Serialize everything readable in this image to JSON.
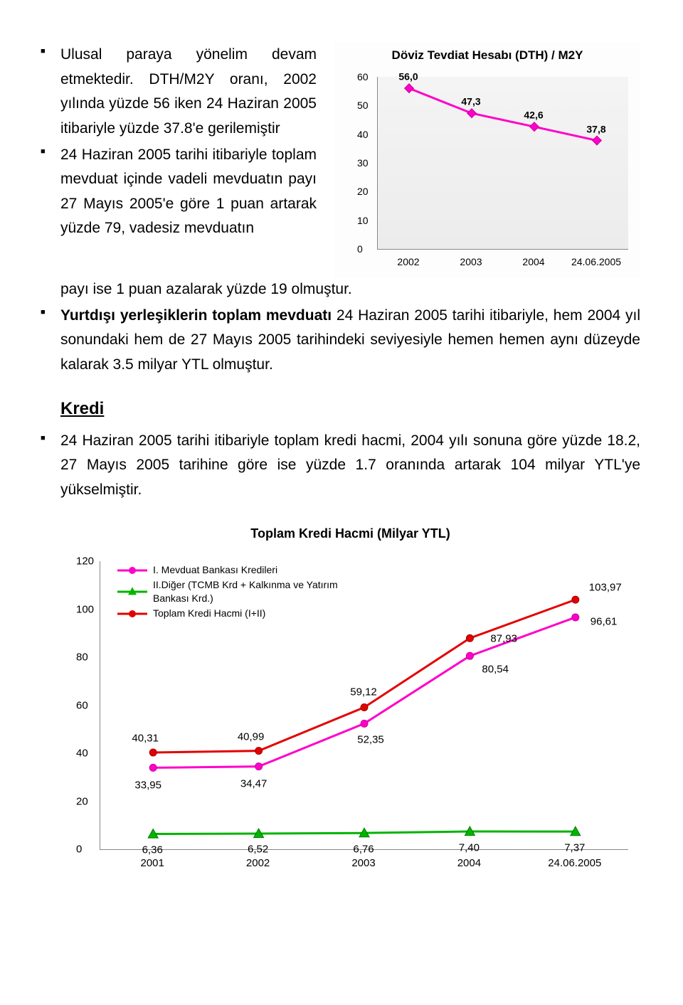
{
  "bullets_top": {
    "item1": "Ulusal paraya yönelim devam etmektedir. DTH/M2Y oranı, 2002 yılında yüzde 56 iken 24 Haziran 2005 itibariyle yüzde 37.8'e gerilemiştir",
    "item2": "24 Haziran 2005 tarihi itibariyle toplam mevduat içinde vadeli mevduatın payı 27 Mayıs 2005'e göre 1 puan artarak yüzde 79, vadesiz mevduatın"
  },
  "cont_text": {
    "line1": "payı ise 1 puan azalarak yüzde 19 olmuştur.",
    "lead": "Yurtdışı yerleşiklerin toplam mevduatı",
    "rest": " 24 Haziran 2005 tarihi itibariyle, hem 2004 yıl sonundaki hem de 27 Mayıs 2005 tarihindeki seviyesiyle hemen hemen aynı düzeyde kalarak 3.5 milyar YTL olmuştur."
  },
  "kredi_heading": "Kredi",
  "bullets_kredi": {
    "item1": "24 Haziran 2005 tarihi itibariyle toplam kredi hacmi, 2004 yılı sonuna göre yüzde 18.2, 27 Mayıs 2005 tarihine göre ise yüzde 1.7 oranında artarak 104 milyar YTL'ye yükselmiştir."
  },
  "chart1": {
    "title": "Döviz Tevdiat Hesabı (DTH) / M2Y",
    "type": "line",
    "ylim": [
      0,
      60
    ],
    "ytick_step": 10,
    "yticks": [
      "0",
      "10",
      "20",
      "30",
      "40",
      "50",
      "60"
    ],
    "categories": [
      "2002",
      "2003",
      "2004",
      "24.06.2005"
    ],
    "values": [
      56.0,
      47.3,
      42.6,
      37.8
    ],
    "value_labels": [
      "56,0",
      "47,3",
      "42,6",
      "37,8"
    ],
    "line_color": "#ff00c8",
    "line_width": 3,
    "marker": "diamond",
    "marker_size": 9,
    "marker_fill": "#ff00c8",
    "marker_stroke": "#c400a0",
    "background_top": "#f4f4f4",
    "background_bottom": "#ececec",
    "axis_color": "#888888",
    "label_fontsize": 14,
    "title_fontsize": 17
  },
  "chart2": {
    "title": "Toplam Kredi Hacmi (Milyar YTL)",
    "type": "line",
    "ylim": [
      0,
      120
    ],
    "ytick_step": 20,
    "yticks": [
      "0",
      "20",
      "40",
      "60",
      "80",
      "100",
      "120"
    ],
    "categories": [
      "2001",
      "2002",
      "2003",
      "2004",
      "24.06.2005"
    ],
    "series": {
      "s1": {
        "label": "I. Mevduat Bankası Kredileri",
        "color": "#ff00c8",
        "marker": "circle",
        "values": [
          33.95,
          34.47,
          52.35,
          80.54,
          96.61
        ],
        "value_labels": [
          "33,95",
          "34,47",
          "52,35",
          "80,54",
          "96,61"
        ]
      },
      "s2": {
        "label": "II.Diğer (TCMB Krd + Kalkınma ve Yatırım Bankası Krd.)",
        "color": "#00b400",
        "marker": "triangle",
        "values": [
          6.36,
          6.52,
          6.76,
          7.4,
          7.37
        ],
        "value_labels": [
          "6,36",
          "6,52",
          "6,76",
          "7,40",
          "7,37"
        ]
      },
      "s3": {
        "label": "Toplam Kredi Hacmi (I+II)",
        "color": "#e30000",
        "marker": "circle",
        "values": [
          40.31,
          40.99,
          59.12,
          87.93,
          103.97
        ],
        "value_labels": [
          "40,31",
          "40,99",
          "59,12",
          "87,93",
          "103,97"
        ]
      }
    },
    "line_width": 3,
    "marker_size": 10,
    "axis_color": "#888888",
    "label_fontsize": 15,
    "title_fontsize": 18,
    "background_color": "#ffffff"
  }
}
